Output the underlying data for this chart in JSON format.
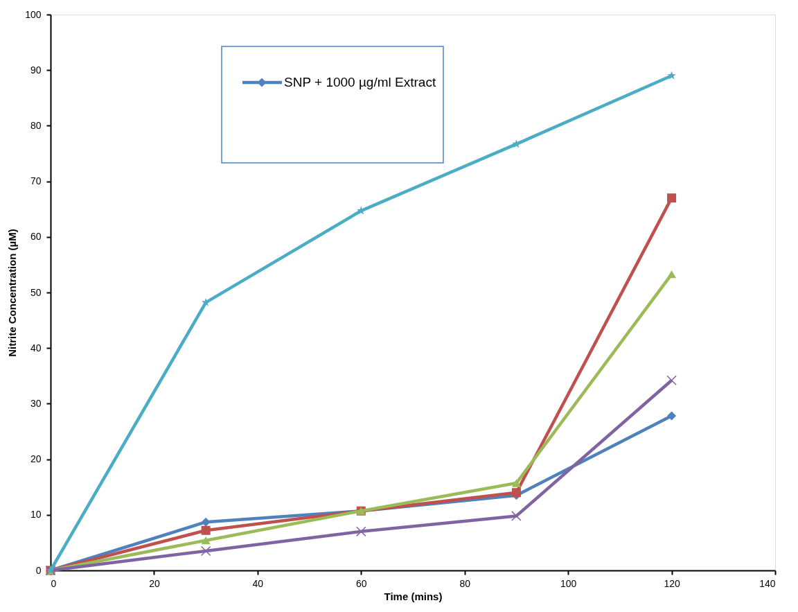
{
  "chart_data": {
    "type": "line",
    "xlabel": "Time (mins)",
    "ylabel": "Nitrite Concentration (µM)",
    "x": [
      0,
      30,
      60,
      90,
      120
    ],
    "xlim": [
      0,
      140
    ],
    "xticks": [
      0,
      20,
      40,
      60,
      80,
      100,
      120,
      140
    ],
    "ylim": [
      0,
      100
    ],
    "yticks": [
      0,
      10,
      20,
      30,
      40,
      50,
      60,
      70,
      80,
      90,
      100
    ],
    "grid": false,
    "legend": "top",
    "line_style": "solid",
    "series": [
      {
        "name": "SNP + 1000 µg/ml Extract",
        "color": "#4f81bd",
        "marker": "diamond",
        "values": [
          0,
          8.7,
          10.7,
          13.5,
          27.8
        ]
      },
      {
        "color": "#c0504d",
        "marker": "square",
        "values": [
          0,
          7.2,
          10.7,
          14.0,
          67.0
        ]
      },
      {
        "color": "#9bbb59",
        "marker": "triangle",
        "values": [
          0,
          5.4,
          10.7,
          15.7,
          53.3
        ]
      },
      {
        "color": "#8064a2",
        "marker": "cross",
        "values": [
          0,
          3.5,
          7.0,
          9.8,
          34.2
        ]
      },
      {
        "color": "#4bacc6",
        "marker": "star",
        "values": [
          0,
          48.2,
          64.7,
          76.7,
          89.0
        ]
      }
    ]
  }
}
